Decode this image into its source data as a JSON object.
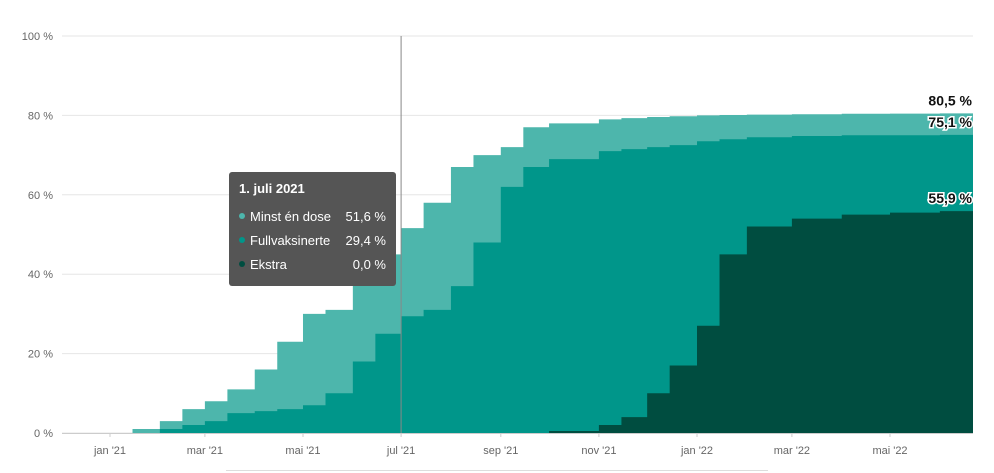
{
  "chart_data": {
    "type": "area",
    "yunit": "%",
    "ylim": [
      0,
      100
    ],
    "yticks": [
      "0 %",
      "20 %",
      "40 %",
      "60 %",
      "80 %",
      "100 %"
    ],
    "xticks": [
      "jan '21",
      "mar '21",
      "mai '21",
      "jul '21",
      "sep '21",
      "nov '21",
      "jan '22",
      "mar '22",
      "mai '22"
    ],
    "x": [
      "2020-12-27",
      "2021-01-15",
      "2021-02-01",
      "2021-02-15",
      "2021-03-01",
      "2021-03-15",
      "2021-04-01",
      "2021-04-15",
      "2021-05-01",
      "2021-05-15",
      "2021-06-01",
      "2021-06-15",
      "2021-07-01",
      "2021-07-15",
      "2021-08-01",
      "2021-08-15",
      "2021-09-01",
      "2021-09-15",
      "2021-10-01",
      "2021-11-01",
      "2021-11-15",
      "2021-12-01",
      "2021-12-15",
      "2022-01-01",
      "2022-01-15",
      "2022-02-01",
      "2022-03-01",
      "2022-04-01",
      "2022-05-01",
      "2022-06-01",
      "2022-06-30"
    ],
    "series": [
      {
        "name": "Minst én dose",
        "color": "#4db6ac",
        "values": [
          0,
          1,
          3,
          6,
          8,
          11,
          16,
          23,
          30,
          31,
          40,
          45,
          51.6,
          58,
          67,
          70,
          72,
          77,
          78,
          79,
          79.3,
          79.6,
          79.8,
          80,
          80.1,
          80.2,
          80.3,
          80.4,
          80.45,
          80.5,
          80.5
        ]
      },
      {
        "name": "Fullvaksinerte",
        "color": "#00968a",
        "values": [
          0,
          0,
          1,
          2,
          3,
          5,
          5.5,
          6,
          7,
          10,
          18,
          25,
          29.4,
          31,
          37,
          48,
          62,
          67,
          69,
          71,
          71.5,
          72,
          72.5,
          73.5,
          74,
          74.5,
          74.8,
          75,
          75,
          75.1,
          75.1
        ]
      },
      {
        "name": "Ekstra",
        "color": "#004d40",
        "values": [
          0,
          0,
          0,
          0,
          0,
          0,
          0,
          0,
          0,
          0,
          0,
          0,
          0.0,
          0,
          0,
          0,
          0,
          0,
          0.5,
          2,
          4,
          10,
          17,
          27,
          45,
          52,
          54,
          55,
          55.5,
          55.9,
          55.9
        ]
      }
    ],
    "end_labels": [
      "80,5 %",
      "75,1 %",
      "55,9 %"
    ],
    "hover_date": "2021-07-01",
    "grid": true
  },
  "tooltip": {
    "title": "1. juli 2021",
    "rows": [
      {
        "name": "Minst én dose",
        "value": "51,6 %",
        "color": "#4db6ac"
      },
      {
        "name": "Fullvaksinerte",
        "value": "29,4 %",
        "color": "#00968a"
      },
      {
        "name": "Ekstra",
        "value": "0,0 %",
        "color": "#004d40"
      }
    ]
  }
}
